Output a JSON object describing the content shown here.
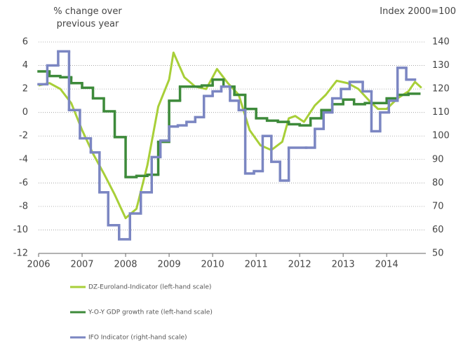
{
  "chart_data": {
    "type": "line",
    "ylabel": "% change over previous year",
    "y2label": "Index 2000=100",
    "xlim": [
      2006,
      2014.9
    ],
    "xticks": [
      2006,
      2007,
      2008,
      2009,
      2010,
      2011,
      2012,
      2013,
      2014
    ],
    "ylim": [
      -12,
      6
    ],
    "yticks": [
      -12,
      -10,
      -8,
      -6,
      -4,
      -2,
      0,
      2,
      4,
      6
    ],
    "y2lim": [
      50,
      140
    ],
    "y2ticks": [
      50,
      60,
      70,
      80,
      90,
      100,
      110,
      120,
      130,
      140
    ],
    "grid": true,
    "legend": "bottom",
    "series": [
      {
        "name": "DZ-Euroland-Indicator (left-hand scale)",
        "color": "#a8cf38",
        "step": false,
        "x": [
          2006.0,
          2006.25,
          2006.5,
          2006.75,
          2007.0,
          2007.25,
          2007.5,
          2007.75,
          2008.0,
          2008.25,
          2008.5,
          2008.75,
          2009.0,
          2009.1,
          2009.35,
          2009.6,
          2009.85,
          2010.0,
          2010.1,
          2010.35,
          2010.6,
          2010.85,
          2011.1,
          2011.35,
          2011.6,
          2011.75,
          2011.9,
          2012.1,
          2012.35,
          2012.6,
          2012.85,
          2013.1,
          2013.35,
          2013.6,
          2013.8,
          2014.0,
          2014.25,
          2014.5,
          2014.65,
          2014.8
        ],
        "values": [
          2.3,
          2.5,
          2.0,
          0.8,
          -1.5,
          -3.5,
          -5.2,
          -7.0,
          -9.0,
          -8.2,
          -4.5,
          0.5,
          2.8,
          5.1,
          3.0,
          2.2,
          2.0,
          3.0,
          3.7,
          2.5,
          1.5,
          -1.5,
          -2.8,
          -3.2,
          -2.5,
          -0.5,
          -0.3,
          -0.8,
          0.6,
          1.5,
          2.7,
          2.5,
          2.0,
          1.0,
          0.3,
          0.3,
          1.2,
          1.8,
          2.6,
          2.1
        ]
      },
      {
        "name": "Y-O-Y GDP growth rate (left-hand scale)",
        "color": "#3d8a3a",
        "step": true,
        "x": [
          2006.0,
          2006.25,
          2006.5,
          2006.75,
          2007.0,
          2007.25,
          2007.5,
          2007.75,
          2008.0,
          2008.25,
          2008.5,
          2008.75,
          2009.0,
          2009.25,
          2009.5,
          2009.75,
          2010.0,
          2010.25,
          2010.5,
          2010.75,
          2011.0,
          2011.25,
          2011.5,
          2011.75,
          2012.0,
          2012.25,
          2012.5,
          2012.75,
          2013.0,
          2013.25,
          2013.5,
          2013.75,
          2014.0,
          2014.25,
          2014.5
        ],
        "values": [
          3.5,
          3.1,
          3.0,
          2.5,
          2.1,
          1.2,
          0.1,
          -2.1,
          -5.5,
          -5.4,
          -5.3,
          -2.5,
          1.0,
          2.2,
          2.2,
          2.3,
          2.8,
          2.2,
          1.5,
          0.3,
          -0.5,
          -0.7,
          -0.8,
          -1.0,
          -1.1,
          -0.5,
          0.2,
          0.7,
          1.1,
          0.7,
          0.8,
          0.8,
          1.2,
          1.5,
          1.6
        ]
      },
      {
        "name": "IFO Indicator (right-hand scale)",
        "color": "#7b86c2",
        "step": true,
        "axis": "y2",
        "x": [
          2006.0,
          2006.2,
          2006.45,
          2006.7,
          2006.95,
          2007.2,
          2007.4,
          2007.6,
          2007.85,
          2008.1,
          2008.35,
          2008.6,
          2008.8,
          2009.0,
          2009.2,
          2009.4,
          2009.6,
          2009.8,
          2010.0,
          2010.2,
          2010.4,
          2010.6,
          2010.75,
          2010.95,
          2011.15,
          2011.35,
          2011.55,
          2011.75,
          2012.15,
          2012.35,
          2012.55,
          2012.75,
          2012.95,
          2013.15,
          2013.45,
          2013.65,
          2013.85,
          2014.05,
          2014.25,
          2014.45
        ],
        "values": [
          122,
          130,
          136,
          111,
          99,
          93,
          76,
          62,
          56,
          67,
          76,
          91,
          98,
          104,
          104.5,
          106,
          108,
          117,
          119,
          121,
          115,
          111,
          84,
          85,
          100,
          89,
          81,
          95,
          95,
          103,
          110,
          116,
          120,
          123,
          119,
          102,
          110,
          115,
          129,
          124
        ]
      }
    ]
  }
}
